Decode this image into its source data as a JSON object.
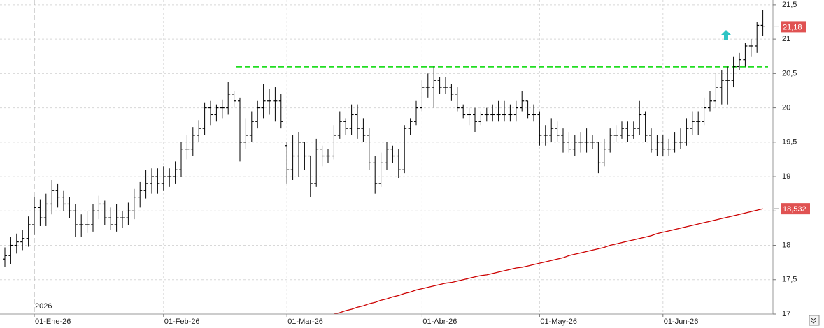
{
  "chart_data": {
    "type": "ohlc",
    "categories": [
      null,
      null,
      null,
      null,
      null,
      "01-Ene-26",
      null,
      null,
      null,
      null,
      null,
      null,
      null,
      null,
      null,
      null,
      null,
      null,
      null,
      null,
      null,
      null,
      null,
      null,
      null,
      null,
      null,
      "01-Feb-26",
      null,
      null,
      null,
      null,
      null,
      null,
      null,
      null,
      null,
      null,
      null,
      null,
      null,
      null,
      null,
      null,
      null,
      null,
      null,
      null,
      "01-Mar-26",
      null,
      null,
      null,
      null,
      null,
      null,
      null,
      null,
      null,
      null,
      null,
      null,
      null,
      null,
      null,
      null,
      null,
      null,
      null,
      null,
      null,
      null,
      "01-Abr-26",
      null,
      null,
      null,
      null,
      null,
      null,
      null,
      null,
      null,
      null,
      null,
      null,
      null,
      null,
      null,
      null,
      null,
      null,
      null,
      "01-May-26",
      null,
      null,
      null,
      null,
      null,
      null,
      null,
      null,
      null,
      null,
      null,
      null,
      null,
      null,
      null,
      null,
      null,
      null,
      null,
      null,
      "01-Jun-26",
      null,
      null,
      null,
      null,
      null,
      null,
      null,
      null,
      null,
      null,
      null,
      null,
      null,
      null,
      null,
      null,
      null
    ],
    "open": [
      17.8,
      17.85,
      18.0,
      18.05,
      18.1,
      18.3,
      18.55,
      18.4,
      18.6,
      18.8,
      18.7,
      18.6,
      18.5,
      18.3,
      18.3,
      18.3,
      18.5,
      18.6,
      18.4,
      18.3,
      18.4,
      18.4,
      18.5,
      18.7,
      18.8,
      18.9,
      19.0,
      18.9,
      19.0,
      19.0,
      19.1,
      19.4,
      19.4,
      19.6,
      19.7,
      20.0,
      19.9,
      20.0,
      20.0,
      20.2,
      20.1,
      19.5,
      19.6,
      19.8,
      20.0,
      20.1,
      20.1,
      20.1,
      19.45,
      19.1,
      19.3,
      19.5,
      19.3,
      18.9,
      19.4,
      19.3,
      19.3,
      19.6,
      19.8,
      19.7,
      19.9,
      19.7,
      19.6,
      19.2,
      18.9,
      19.2,
      19.4,
      19.3,
      19.1,
      19.7,
      19.8,
      20.0,
      20.3,
      20.3,
      20.4,
      20.3,
      20.3,
      20.2,
      20.0,
      19.9,
      19.9,
      19.8,
      19.9,
      19.9,
      19.9,
      19.9,
      19.9,
      19.9,
      20.0,
      20.1,
      19.9,
      19.9,
      19.6,
      19.6,
      19.7,
      19.6,
      19.5,
      19.4,
      19.5,
      19.5,
      19.5,
      19.5,
      19.2,
      19.4,
      19.6,
      19.6,
      19.7,
      19.6,
      19.7,
      19.9,
      19.6,
      19.4,
      19.5,
      19.4,
      19.4,
      19.5,
      19.5,
      19.7,
      19.8,
      19.8,
      20.0,
      20.1,
      20.3,
      20.4,
      20.4,
      20.6,
      20.7,
      20.9,
      20.9,
      21.2
    ],
    "high": [
      17.97,
      18.12,
      18.17,
      18.22,
      18.42,
      18.7,
      18.67,
      18.75,
      18.95,
      18.9,
      18.8,
      18.7,
      18.6,
      18.45,
      18.5,
      18.6,
      18.72,
      18.65,
      18.55,
      18.6,
      18.5,
      18.62,
      18.82,
      18.92,
      19.1,
      19.12,
      19.12,
      19.15,
      19.12,
      19.22,
      19.5,
      19.6,
      19.72,
      19.82,
      20.08,
      20.1,
      20.05,
      20.12,
      20.38,
      20.25,
      20.15,
      19.85,
      19.95,
      20.1,
      20.35,
      20.28,
      20.3,
      20.2,
      19.5,
      19.6,
      19.65,
      19.5,
      19.3,
      19.55,
      19.45,
      19.4,
      19.75,
      19.95,
      19.85,
      20.05,
      20.05,
      19.85,
      19.7,
      19.3,
      19.35,
      19.5,
      19.45,
      19.4,
      19.75,
      19.85,
      20.1,
      20.4,
      20.5,
      20.6,
      20.45,
      20.45,
      20.35,
      20.3,
      20.05,
      20.0,
      20.0,
      19.95,
      20.0,
      20.05,
      20.1,
      20.1,
      20.05,
      20.1,
      20.25,
      20.1,
      20.05,
      19.95,
      19.75,
      19.85,
      19.8,
      19.7,
      19.65,
      19.6,
      19.65,
      19.7,
      19.6,
      19.5,
      19.55,
      19.7,
      19.75,
      19.8,
      19.8,
      19.8,
      20.1,
      19.95,
      19.7,
      19.6,
      19.6,
      19.55,
      19.65,
      19.7,
      19.85,
      19.95,
      19.95,
      20.15,
      20.25,
      20.5,
      20.55,
      20.6,
      20.75,
      20.8,
      20.95,
      21.0,
      21.25,
      21.42
    ],
    "low": [
      17.68,
      17.73,
      17.88,
      17.93,
      17.98,
      18.15,
      18.28,
      18.28,
      18.45,
      18.55,
      18.5,
      18.4,
      18.12,
      18.12,
      18.18,
      18.2,
      18.38,
      18.3,
      18.22,
      18.2,
      18.25,
      18.3,
      18.38,
      18.55,
      18.68,
      18.75,
      18.75,
      18.8,
      18.85,
      18.9,
      19.0,
      19.25,
      19.3,
      19.5,
      19.6,
      19.75,
      19.8,
      19.85,
      19.9,
      20.0,
      19.22,
      19.4,
      19.5,
      19.7,
      19.85,
      19.9,
      19.8,
      19.7,
      18.9,
      18.95,
      19.0,
      19.1,
      18.7,
      18.85,
      19.15,
      19.2,
      19.25,
      19.55,
      19.6,
      19.6,
      19.55,
      19.5,
      19.1,
      18.75,
      18.85,
      19.1,
      19.2,
      18.98,
      19.05,
      19.6,
      19.75,
      19.95,
      20.15,
      20.0,
      20.2,
      20.2,
      20.1,
      19.95,
      19.85,
      19.75,
      19.65,
      19.75,
      19.8,
      19.8,
      19.8,
      19.8,
      19.8,
      19.8,
      19.95,
      19.85,
      19.8,
      19.45,
      19.45,
      19.5,
      19.5,
      19.35,
      19.35,
      19.3,
      19.35,
      19.35,
      19.4,
      19.05,
      19.15,
      19.35,
      19.5,
      19.55,
      19.5,
      19.55,
      19.6,
      19.5,
      19.35,
      19.3,
      19.3,
      19.3,
      19.35,
      19.4,
      19.45,
      19.6,
      19.6,
      19.75,
      19.95,
      20.0,
      20.05,
      20.05,
      20.3,
      20.55,
      20.6,
      20.75,
      20.8,
      21.05
    ],
    "close": [
      17.85,
      18.0,
      18.05,
      18.1,
      18.3,
      18.55,
      18.4,
      18.6,
      18.8,
      18.7,
      18.6,
      18.5,
      18.3,
      18.3,
      18.3,
      18.5,
      18.6,
      18.4,
      18.3,
      18.4,
      18.4,
      18.5,
      18.7,
      18.8,
      18.9,
      19.0,
      18.9,
      19.0,
      19.0,
      19.1,
      19.4,
      19.4,
      19.6,
      19.7,
      20.0,
      19.9,
      20.0,
      20.0,
      20.2,
      20.1,
      19.5,
      19.6,
      19.8,
      20.0,
      20.1,
      20.1,
      20.1,
      19.8,
      19.1,
      19.3,
      19.5,
      19.3,
      18.9,
      19.4,
      19.3,
      19.3,
      19.6,
      19.8,
      19.7,
      19.9,
      19.7,
      19.6,
      19.2,
      18.9,
      19.2,
      19.4,
      19.3,
      19.1,
      19.7,
      19.8,
      20.0,
      20.3,
      20.3,
      20.4,
      20.3,
      20.3,
      20.2,
      20.0,
      19.9,
      19.9,
      19.8,
      19.9,
      19.9,
      19.9,
      19.9,
      19.9,
      19.9,
      20.0,
      20.1,
      19.9,
      19.9,
      19.6,
      19.6,
      19.7,
      19.6,
      19.5,
      19.4,
      19.5,
      19.5,
      19.5,
      19.5,
      19.2,
      19.4,
      19.6,
      19.6,
      19.7,
      19.6,
      19.7,
      19.9,
      19.6,
      19.4,
      19.5,
      19.4,
      19.4,
      19.5,
      19.5,
      19.7,
      19.8,
      19.8,
      20.0,
      20.1,
      20.3,
      20.4,
      20.4,
      20.6,
      20.7,
      20.9,
      20.9,
      21.2,
      21.18
    ],
    "color": "#000000",
    "last_value_label": "21,18",
    "moving_average": {
      "color": "#cc0000",
      "last_value_label": "18,532",
      "values": [
        null,
        null,
        null,
        null,
        null,
        null,
        null,
        null,
        null,
        null,
        null,
        null,
        null,
        null,
        null,
        null,
        null,
        null,
        null,
        null,
        null,
        null,
        null,
        null,
        null,
        null,
        null,
        null,
        null,
        null,
        null,
        null,
        null,
        null,
        null,
        null,
        null,
        null,
        null,
        null,
        null,
        null,
        null,
        null,
        null,
        null,
        null,
        null,
        null,
        null,
        null,
        null,
        null,
        null,
        null,
        null,
        17.0,
        17.02,
        17.05,
        17.07,
        17.1,
        17.12,
        17.15,
        17.17,
        17.2,
        17.22,
        17.25,
        17.27,
        17.3,
        17.32,
        17.35,
        17.37,
        17.39,
        17.41,
        17.43,
        17.45,
        17.46,
        17.48,
        17.5,
        17.52,
        17.54,
        17.56,
        17.57,
        17.59,
        17.61,
        17.63,
        17.65,
        17.67,
        17.68,
        17.7,
        17.72,
        17.74,
        17.76,
        17.78,
        17.8,
        17.82,
        17.85,
        17.87,
        17.89,
        17.91,
        17.93,
        17.95,
        17.97,
        18.0,
        18.02,
        18.04,
        18.06,
        18.08,
        18.1,
        18.12,
        18.14,
        18.17,
        18.19,
        18.21,
        18.23,
        18.25,
        18.27,
        18.29,
        18.31,
        18.33,
        18.35,
        18.37,
        18.39,
        18.41,
        18.43,
        18.45,
        18.47,
        18.49,
        18.51,
        18.532
      ]
    },
    "resistance": {
      "value": 20.6,
      "color": "#22dd22"
    },
    "year_label": "2026",
    "ylim": [
      17,
      21.57
    ],
    "yticks": [
      17,
      {
        "value": 17.5,
        "label": "17,5"
      },
      18,
      {
        "value": 18.5,
        "label": "18,5"
      },
      19,
      {
        "value": 19.5,
        "label": "19,5"
      },
      20,
      {
        "value": 20.5,
        "label": "20,5"
      },
      21,
      {
        "value": 21.5,
        "label": "21,5"
      }
    ],
    "grid": true
  }
}
